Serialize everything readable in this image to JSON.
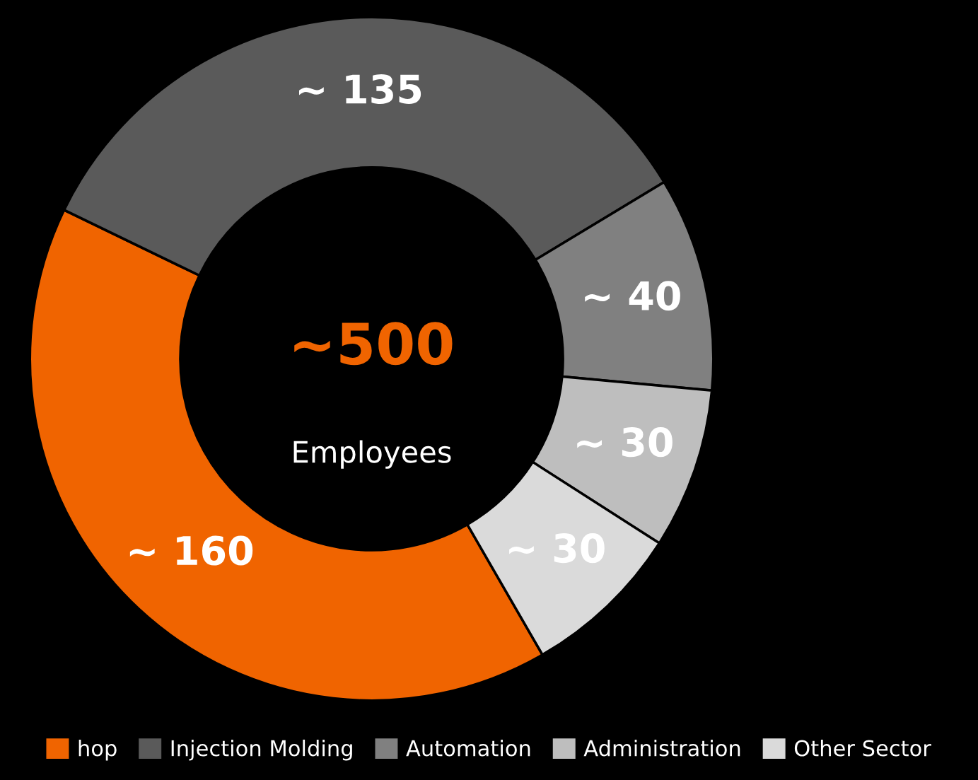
{
  "chart_data": {
    "type": "donut",
    "categories": [
      "hop",
      "Injection Molding",
      "Automation",
      "Administration",
      "Other Sector"
    ],
    "values": [
      160,
      135,
      40,
      30,
      30
    ],
    "colors": [
      "#f06400",
      "#5a5a5a",
      "#808080",
      "#bebebe",
      "#dadada"
    ],
    "value_labels": [
      "~ 160",
      "~ 135",
      "~ 40",
      "~ 30",
      "~ 30"
    ],
    "annotations": [
      "~500",
      "Employees"
    ],
    "legend": "bottom"
  }
}
